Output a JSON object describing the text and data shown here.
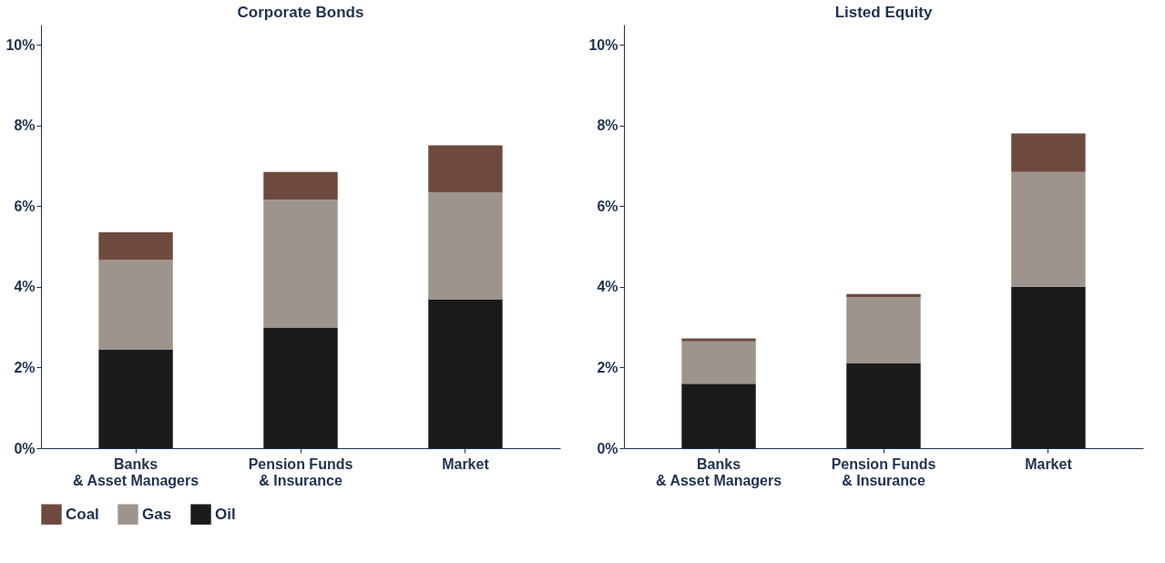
{
  "chart_data": [
    {
      "type": "bar",
      "title": "Corporate Bonds",
      "stacked": true,
      "categories": [
        "Banks\n& Asset Managers",
        "Pension Funds\n& Insurance",
        "Market"
      ],
      "series": [
        {
          "name": "Oil",
          "color": "#1a1a1a",
          "values": [
            2.45,
            2.99,
            3.69
          ]
        },
        {
          "name": "Gas",
          "color": "#9d958d",
          "values": [
            2.22,
            3.17,
            2.65
          ]
        },
        {
          "name": "Coal",
          "color": "#6e4a3e",
          "values": [
            0.68,
            0.69,
            1.17
          ]
        }
      ],
      "ylim": [
        0,
        10.5
      ],
      "yticks": [
        {
          "value": 0,
          "label": "0%"
        },
        {
          "value": 2,
          "label": "2%"
        },
        {
          "value": 4,
          "label": "4%"
        },
        {
          "value": 6,
          "label": "6%"
        },
        {
          "value": 8,
          "label": "8%"
        },
        {
          "value": 10,
          "label": "10%"
        }
      ],
      "grid": false,
      "legend": "bottom"
    },
    {
      "type": "bar",
      "title": "Listed Equity",
      "stacked": true,
      "categories": [
        "Banks\n& Asset Managers",
        "Pension Funds\n& Insurance",
        "Market"
      ],
      "series": [
        {
          "name": "Oil",
          "color": "#1a1a1a",
          "values": [
            1.6,
            2.11,
            4.0
          ]
        },
        {
          "name": "Gas",
          "color": "#9d958d",
          "values": [
            1.05,
            1.64,
            2.85
          ]
        },
        {
          "name": "Coal",
          "color": "#6e4a3e",
          "values": [
            0.07,
            0.07,
            0.95
          ]
        }
      ],
      "ylim": [
        0,
        10.5
      ],
      "yticks": [
        {
          "value": 0,
          "label": "0%"
        },
        {
          "value": 2,
          "label": "2%"
        },
        {
          "value": 4,
          "label": "4%"
        },
        {
          "value": 6,
          "label": "6%"
        },
        {
          "value": 8,
          "label": "8%"
        },
        {
          "value": 10,
          "label": "10%"
        }
      ],
      "grid": false
    }
  ]
}
